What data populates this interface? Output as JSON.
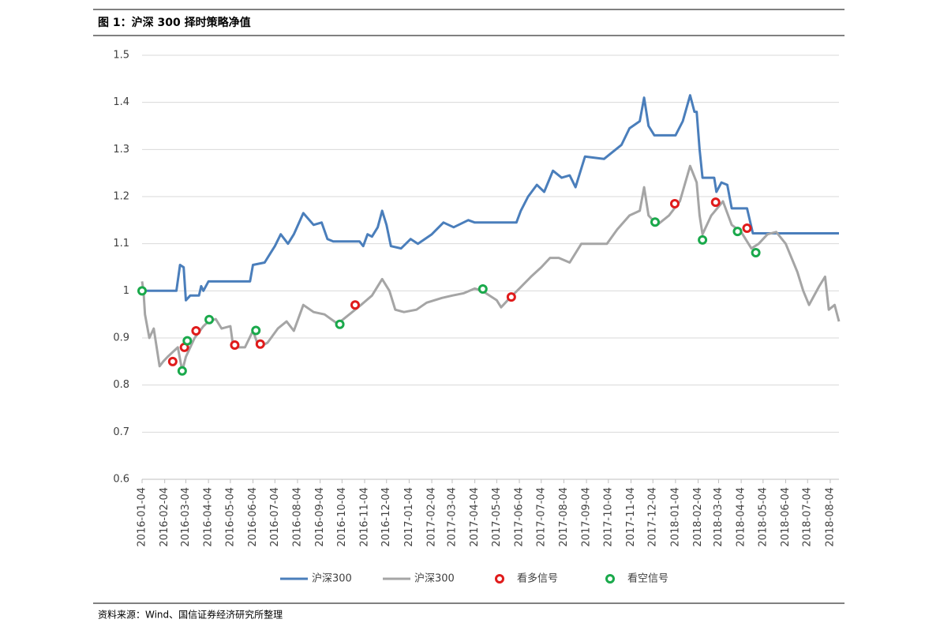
{
  "chart_data": {
    "type": "line",
    "title": "图 1：沪深 300 择时策略净值",
    "source": "资料来源：Wind、国信证券经济研究所整理",
    "xlim": [
      "2016-01-04",
      "2018-08-16"
    ],
    "xticks": [
      "2016-01-04",
      "2016-02-04",
      "2016-03-04",
      "2016-04-04",
      "2016-05-04",
      "2016-06-04",
      "2016-07-04",
      "2016-08-04",
      "2016-09-04",
      "2016-10-04",
      "2016-11-04",
      "2016-12-04",
      "2017-01-04",
      "2017-02-04",
      "2017-03-04",
      "2017-04-04",
      "2017-05-04",
      "2017-06-04",
      "2017-07-04",
      "2017-08-04",
      "2017-09-04",
      "2017-10-04",
      "2017-11-04",
      "2017-12-04",
      "2018-01-04",
      "2018-02-04",
      "2018-03-04",
      "2018-04-04",
      "2018-05-04",
      "2018-06-04",
      "2018-07-04",
      "2018-08-04"
    ],
    "ylim": [
      0.6,
      1.5
    ],
    "yticks": [
      0.6,
      0.7,
      0.8,
      0.9,
      1,
      1.1,
      1.2,
      1.3,
      1.4,
      1.5
    ],
    "grid": true,
    "legend": "bottom",
    "series": [
      {
        "name": "沪深300",
        "color": "#4a7ebb",
        "type": "line",
        "x": [
          "2016-01-04",
          "2016-02-20",
          "2016-02-25",
          "2016-03-01",
          "2016-03-04",
          "2016-03-10",
          "2016-03-22",
          "2016-03-25",
          "2016-03-28",
          "2016-04-04",
          "2016-05-31",
          "2016-06-04",
          "2016-06-20",
          "2016-06-28",
          "2016-07-04",
          "2016-07-12",
          "2016-07-22",
          "2016-07-30",
          "2016-08-12",
          "2016-08-26",
          "2016-09-06",
          "2016-09-14",
          "2016-09-22",
          "2016-10-28",
          "2016-11-02",
          "2016-11-08",
          "2016-11-14",
          "2016-11-22",
          "2016-11-28",
          "2016-12-04",
          "2016-12-10",
          "2016-12-24",
          "2017-01-06",
          "2017-01-16",
          "2017-02-04",
          "2017-02-20",
          "2017-03-06",
          "2017-03-26",
          "2017-04-04",
          "2017-05-31",
          "2017-06-06",
          "2017-06-16",
          "2017-06-28",
          "2017-07-08",
          "2017-07-20",
          "2017-08-01",
          "2017-08-12",
          "2017-08-20",
          "2017-09-02",
          "2017-09-28",
          "2017-10-06",
          "2017-10-22",
          "2017-11-02",
          "2017-11-16",
          "2017-11-22",
          "2017-11-28",
          "2017-12-06",
          "2018-01-04",
          "2018-01-14",
          "2018-01-24",
          "2018-01-30",
          "2018-02-02",
          "2018-02-06",
          "2018-02-10",
          "2018-02-26",
          "2018-03-01",
          "2018-03-08",
          "2018-03-16",
          "2018-03-22",
          "2018-04-12",
          "2018-04-20",
          "2018-08-16"
        ],
        "values": [
          1.0,
          1.0,
          1.055,
          1.05,
          0.98,
          0.99,
          0.99,
          1.01,
          1.0,
          1.02,
          1.02,
          1.055,
          1.06,
          1.08,
          1.095,
          1.12,
          1.1,
          1.12,
          1.165,
          1.14,
          1.145,
          1.11,
          1.105,
          1.105,
          1.095,
          1.12,
          1.115,
          1.135,
          1.17,
          1.14,
          1.095,
          1.09,
          1.11,
          1.1,
          1.12,
          1.145,
          1.135,
          1.15,
          1.145,
          1.145,
          1.17,
          1.2,
          1.225,
          1.21,
          1.255,
          1.24,
          1.245,
          1.22,
          1.285,
          1.28,
          1.29,
          1.31,
          1.345,
          1.36,
          1.41,
          1.35,
          1.33,
          1.33,
          1.36,
          1.415,
          1.38,
          1.38,
          1.3,
          1.24,
          1.24,
          1.21,
          1.23,
          1.225,
          1.175,
          1.175,
          1.122,
          1.122
        ]
      },
      {
        "name": "沪深300",
        "color": "#a5a5a5",
        "type": "line",
        "x": [
          "2016-01-04",
          "2016-01-06",
          "2016-01-08",
          "2016-01-14",
          "2016-01-20",
          "2016-01-28",
          "2016-02-02",
          "2016-02-08",
          "2016-02-22",
          "2016-02-28",
          "2016-03-04",
          "2016-03-16",
          "2016-03-28",
          "2016-04-04",
          "2016-04-14",
          "2016-04-22",
          "2016-05-04",
          "2016-05-08",
          "2016-05-24",
          "2016-06-04",
          "2016-06-12",
          "2016-06-24",
          "2016-07-08",
          "2016-07-20",
          "2016-07-30",
          "2016-08-12",
          "2016-08-26",
          "2016-09-10",
          "2016-09-28",
          "2016-10-14",
          "2016-10-30",
          "2016-11-14",
          "2016-11-28",
          "2016-12-08",
          "2016-12-16",
          "2016-12-28",
          "2017-01-14",
          "2017-01-28",
          "2017-02-18",
          "2017-03-04",
          "2017-03-20",
          "2017-04-04",
          "2017-04-14",
          "2017-05-04",
          "2017-05-10",
          "2017-05-22",
          "2017-06-04",
          "2017-06-20",
          "2017-07-04",
          "2017-07-16",
          "2017-07-28",
          "2017-08-12",
          "2017-08-28",
          "2017-09-14",
          "2017-10-02",
          "2017-10-16",
          "2017-11-02",
          "2017-11-16",
          "2017-11-22",
          "2017-11-28",
          "2017-12-10",
          "2017-12-26",
          "2018-01-10",
          "2018-01-24",
          "2018-02-02",
          "2018-02-06",
          "2018-02-10",
          "2018-02-22",
          "2018-03-10",
          "2018-03-22",
          "2018-04-04",
          "2018-04-18",
          "2018-04-28",
          "2018-05-10",
          "2018-05-22",
          "2018-06-04",
          "2018-06-20",
          "2018-06-28",
          "2018-07-06",
          "2018-07-20",
          "2018-07-28",
          "2018-08-02",
          "2018-08-10",
          "2018-08-16"
        ],
        "values": [
          1.02,
          1.0,
          0.95,
          0.9,
          0.92,
          0.84,
          0.85,
          0.86,
          0.88,
          0.83,
          0.86,
          0.9,
          0.925,
          0.935,
          0.94,
          0.92,
          0.925,
          0.88,
          0.88,
          0.915,
          0.88,
          0.89,
          0.92,
          0.935,
          0.915,
          0.97,
          0.955,
          0.95,
          0.93,
          0.95,
          0.97,
          0.99,
          1.025,
          1.0,
          0.96,
          0.955,
          0.96,
          0.975,
          0.985,
          0.99,
          0.995,
          1.005,
          1.0,
          0.98,
          0.965,
          0.985,
          1.005,
          1.03,
          1.05,
          1.07,
          1.07,
          1.06,
          1.1,
          1.1,
          1.1,
          1.13,
          1.16,
          1.17,
          1.22,
          1.16,
          1.14,
          1.16,
          1.19,
          1.265,
          1.23,
          1.16,
          1.12,
          1.16,
          1.19,
          1.14,
          1.125,
          1.09,
          1.1,
          1.12,
          1.125,
          1.1,
          1.04,
          1.0,
          0.97,
          1.01,
          1.03,
          0.96,
          0.97,
          0.935
        ]
      },
      {
        "name": "看多信号",
        "color": "#e01b1b",
        "type": "scatter",
        "x": [
          "2016-02-15",
          "2016-03-02",
          "2016-03-18",
          "2016-05-10",
          "2016-06-14",
          "2016-10-22",
          "2017-05-24",
          "2018-01-03",
          "2018-02-28",
          "2018-04-12"
        ],
        "values": [
          0.85,
          0.88,
          0.915,
          0.885,
          0.887,
          0.97,
          0.987,
          1.185,
          1.188,
          1.133
        ]
      },
      {
        "name": "看空信号",
        "color": "#1aa94b",
        "type": "scatter",
        "x": [
          "2016-01-04",
          "2016-02-28",
          "2016-03-06",
          "2016-04-05",
          "2016-06-08",
          "2016-10-01",
          "2017-04-15",
          "2017-12-07",
          "2018-02-10",
          "2018-03-30",
          "2018-04-24"
        ],
        "values": [
          1.0,
          0.83,
          0.894,
          0.939,
          0.916,
          0.929,
          1.004,
          1.146,
          1.108,
          1.126,
          1.081
        ]
      }
    ]
  }
}
